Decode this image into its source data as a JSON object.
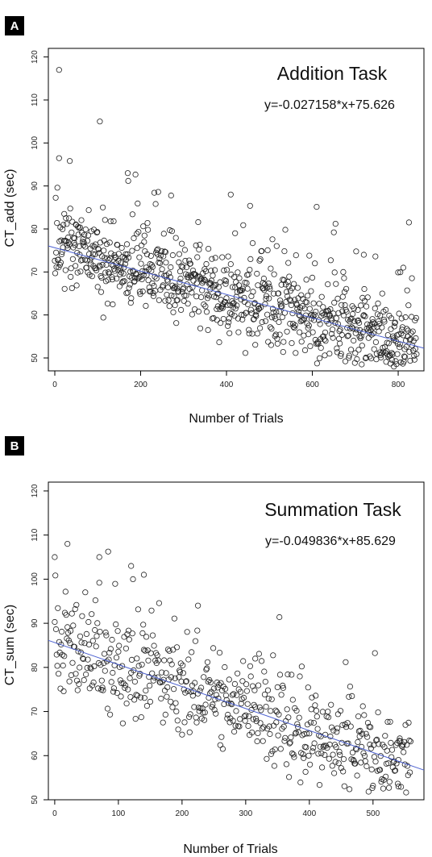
{
  "chart_data": [
    {
      "type": "scatter",
      "panel": "A",
      "title": "Addition Task",
      "annotation": "y=-0.027158*x+75.626",
      "xlabel": "Number of Trials",
      "ylabel": "CT_add (sec)",
      "xlim": [
        -15,
        860
      ],
      "ylim": [
        47,
        122
      ],
      "xticks": [
        0,
        200,
        400,
        600,
        800
      ],
      "yticks": [
        50,
        60,
        70,
        80,
        90,
        100,
        110,
        120
      ],
      "n_points": 844,
      "fit": {
        "slope": -0.027158,
        "intercept": 75.626,
        "color": "#4a5fd0"
      },
      "marker": "open-circle",
      "notable_points": [
        [
          10,
          117
        ],
        [
          105,
          105
        ],
        [
          170,
          93
        ],
        [
          410,
          88
        ],
        [
          420,
          79
        ],
        [
          720,
          74
        ],
        [
          812,
          71
        ],
        [
          790,
          48
        ]
      ]
    },
    {
      "type": "scatter",
      "panel": "B",
      "title": "Summation Task",
      "annotation": "y=-0.049836*x+85.629",
      "xlabel": "Number of Trials",
      "ylabel": "CT_sum (sec)",
      "xlim": [
        -10,
        580
      ],
      "ylim": [
        50,
        122
      ],
      "xticks": [
        0,
        100,
        200,
        300,
        400,
        500
      ],
      "yticks": [
        50,
        60,
        70,
        80,
        90,
        100,
        110,
        120
      ],
      "n_points": 560,
      "fit": {
        "slope": -0.049836,
        "intercept": 85.629,
        "color": "#4a5fd0"
      },
      "marker": "open-circle",
      "notable_points": [
        [
          0,
          105
        ],
        [
          20,
          108
        ],
        [
          70,
          105
        ],
        [
          120,
          103
        ],
        [
          140,
          101
        ],
        [
          225,
          94
        ],
        [
          315,
          82
        ],
        [
          540,
          53
        ]
      ]
    }
  ]
}
